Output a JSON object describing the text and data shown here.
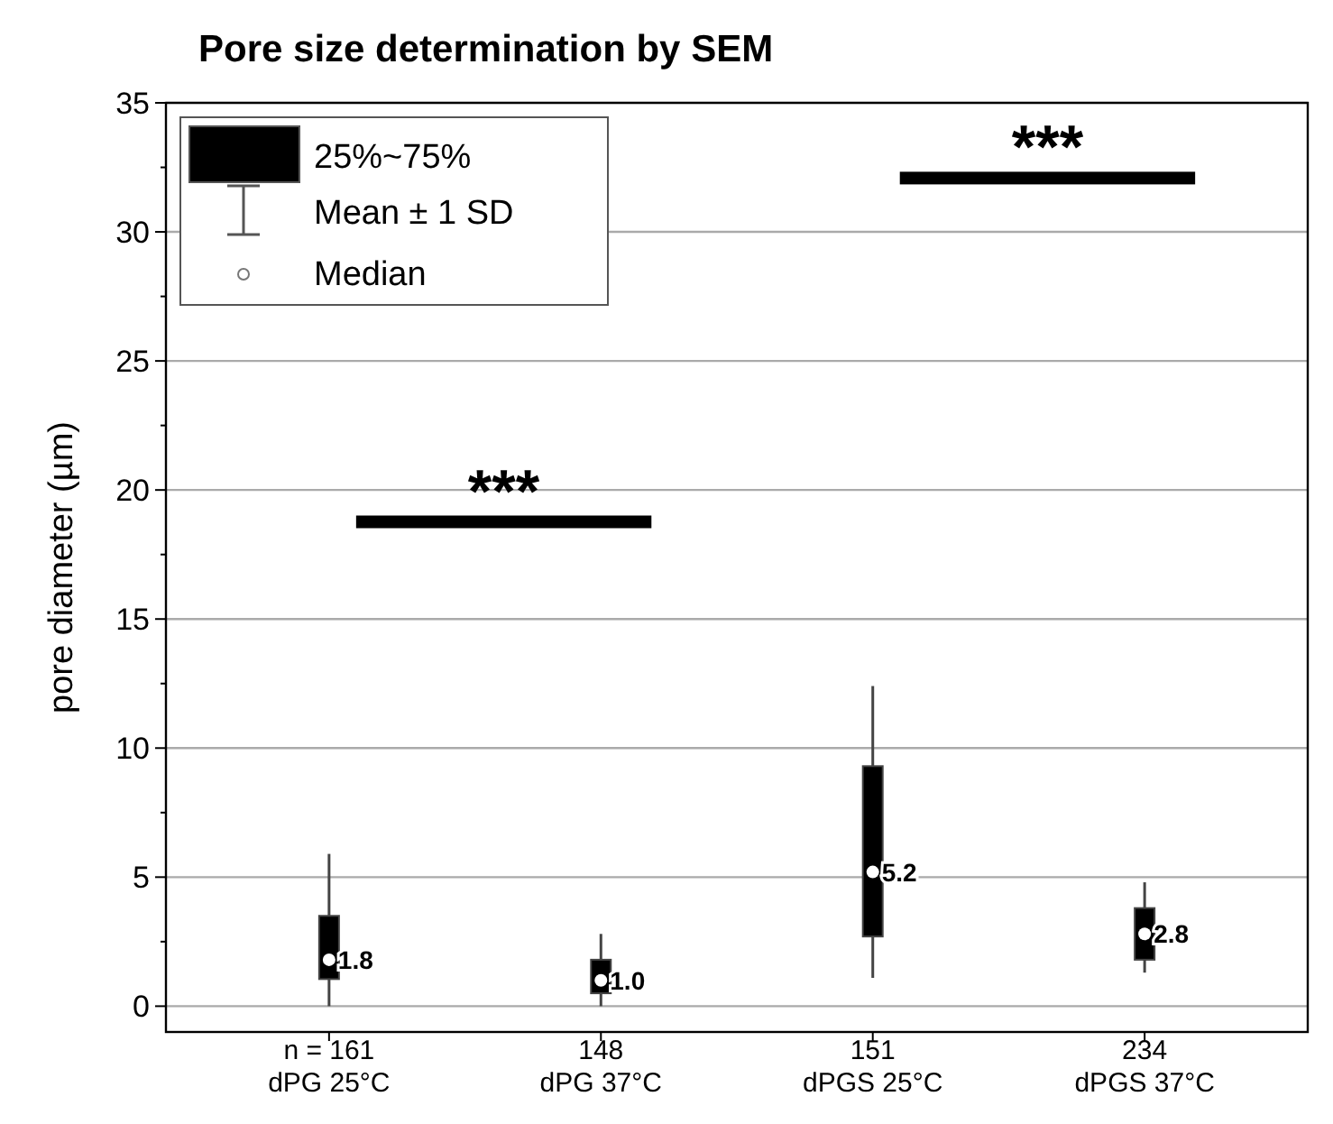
{
  "chart_data": {
    "type": "box",
    "title": "Pore size determination by SEM",
    "ylabel": "pore diameter (µm)",
    "categories": [
      "dPG 25°C",
      "dPG 37°C",
      "dPGS 25°C",
      "dPGS 37°C"
    ],
    "series": [
      {
        "name": "25%~75%",
        "color": "#000000",
        "boxes": [
          {
            "low": 0,
            "q1": 1.05,
            "median": 1.8,
            "q3": 3.5,
            "high": 5.9
          },
          {
            "low": 0,
            "q1": 0.5,
            "median": 1.0,
            "q3": 1.8,
            "high": 2.8
          },
          {
            "low": 1.1,
            "q1": 2.7,
            "median": 5.2,
            "q3": 9.3,
            "high": 12.4
          },
          {
            "low": 1.3,
            "q1": 1.8,
            "median": 2.8,
            "q3": 3.8,
            "high": 4.8
          }
        ],
        "value_labels": [
          "1.8",
          "1.0",
          "5.2",
          "2.8"
        ]
      }
    ],
    "ylim": [
      -1,
      35
    ],
    "yticks": [
      0,
      {
        "value": 2.5,
        "label": null
      },
      5,
      {
        "value": 7.5,
        "label": null
      },
      10,
      {
        "value": 12.5,
        "label": null
      },
      15,
      {
        "value": 17.5,
        "label": null
      },
      20,
      {
        "value": 22.5,
        "label": null
      },
      25,
      {
        "value": 27.5,
        "label": null
      },
      30,
      {
        "value": 32.5,
        "label": null
      },
      35
    ],
    "grid": "y",
    "legend": "top left",
    "annotations": [
      "Mean ± 1 SD",
      "Median",
      "n = 161",
      "148",
      "151",
      "234",
      "***",
      "***"
    ]
  }
}
